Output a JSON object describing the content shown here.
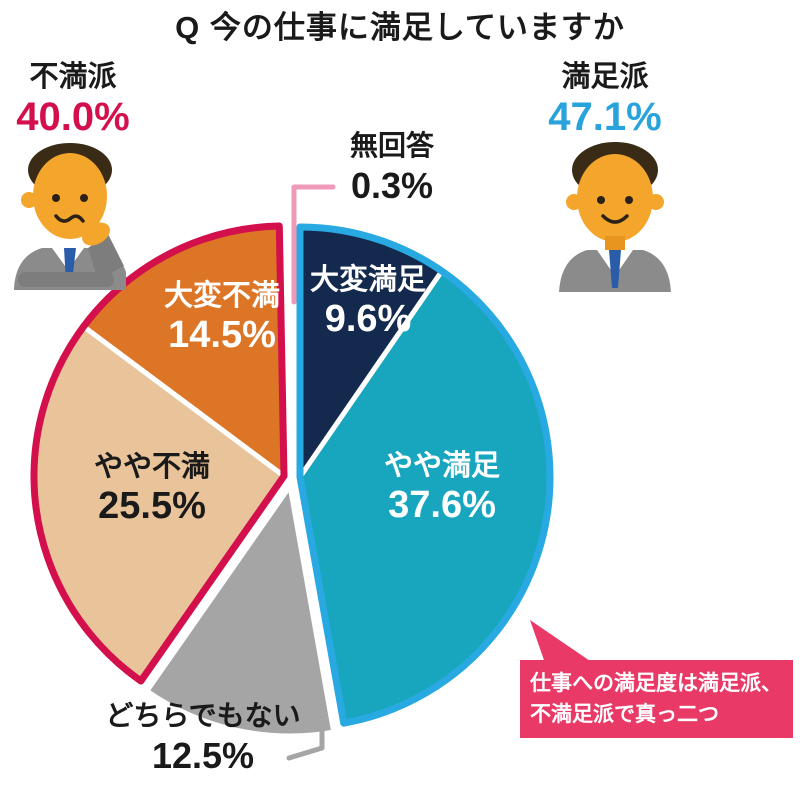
{
  "title": "Q 今の仕事に満足していますか",
  "callout": {
    "line1": "仕事への満足度は満足派、",
    "line2": "不満足派で真っ二つ"
  },
  "colors": {
    "red": "#d3104c",
    "blue": "#29a9e1",
    "cyan-text": "#29a3dc",
    "pink": "#e93a67",
    "pink-light": "#ee9ab8",
    "gray-leader": "#a5a5a5",
    "ink": "#1a1a1a"
  },
  "chart_data": {
    "type": "pie",
    "title": "Q 今の仕事に満足していますか",
    "unit": "%",
    "start_angle_deg": 0,
    "direction": "clockwise",
    "legend": false,
    "slices": [
      {
        "label": "大変満足",
        "value": 9.6,
        "display": "9.6%",
        "color": "#13294d",
        "group": "satisfied"
      },
      {
        "label": "やや満足",
        "value": 37.6,
        "display": "37.6%",
        "color": "#18a6bf",
        "group": "satisfied"
      },
      {
        "label": "どちらでもない",
        "value": 12.5,
        "display": "12.5%",
        "color": "#a5a5a5",
        "group": "neutral"
      },
      {
        "label": "やや不満",
        "value": 25.5,
        "display": "25.5%",
        "color": "#e9c49b",
        "group": "dissatisfied"
      },
      {
        "label": "大変不満",
        "value": 14.5,
        "display": "14.5%",
        "color": "#dd7527",
        "group": "dissatisfied"
      },
      {
        "label": "無回答",
        "value": 0.3,
        "display": "0.3%",
        "color": "#ee9ab8",
        "group": "none"
      }
    ],
    "groups": {
      "satisfied": {
        "label": "満足派",
        "display": "47.1%",
        "outline": "#29a9e1",
        "explode": [
          8,
          -1
        ]
      },
      "neutral": {
        "explode": [
          -2,
          8
        ]
      },
      "dissatisfied": {
        "label": "不満派",
        "display": "40.0%",
        "outline": "#d3104c",
        "explode": [
          -8,
          -2
        ]
      },
      "none": {
        "explode": [
          0,
          -8
        ]
      }
    }
  }
}
